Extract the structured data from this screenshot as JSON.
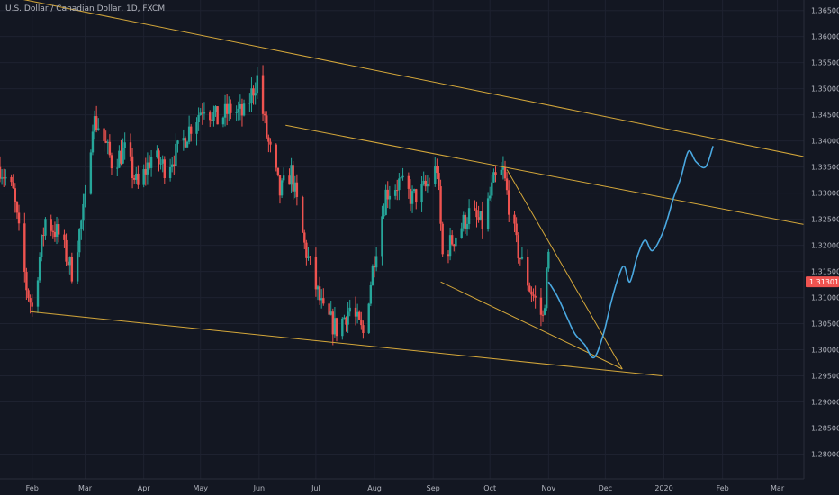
{
  "header": {
    "title": "U.S. Dollar / Canadian Dollar, 1D, FXCM"
  },
  "colors": {
    "background": "#131722",
    "grid": "#1e2230",
    "up": "#26a69a",
    "down": "#ef5350",
    "trendline": "#d4a73a",
    "projection": "#4aa8e0",
    "price_tag": "#ef5350",
    "axis_text": "#b2b5be"
  },
  "chart_data": {
    "type": "candlestick",
    "title": "U.S. Dollar / Canadian Dollar, 1D, FXCM",
    "x_ticks": [
      {
        "label": "Feb",
        "date": "2019-02-01"
      },
      {
        "label": "Mar",
        "date": "2019-03-01"
      },
      {
        "label": "Apr",
        "date": "2019-04-01"
      },
      {
        "label": "May",
        "date": "2019-05-01"
      },
      {
        "label": "Jun",
        "date": "2019-06-01"
      },
      {
        "label": "Jul",
        "date": "2019-07-01"
      },
      {
        "label": "Aug",
        "date": "2019-08-01"
      },
      {
        "label": "Sep",
        "date": "2019-09-01"
      },
      {
        "label": "Oct",
        "date": "2019-10-01"
      },
      {
        "label": "Nov",
        "date": "2019-11-01"
      },
      {
        "label": "Dec",
        "date": "2019-12-01"
      },
      {
        "label": "2020",
        "date": "2020-01-01"
      },
      {
        "label": "Feb",
        "date": "2020-02-01"
      },
      {
        "label": "Mar",
        "date": "2020-03-01"
      }
    ],
    "y_ticks": [
      "1.36500",
      "1.36000",
      "1.35500",
      "1.35000",
      "1.34500",
      "1.34000",
      "1.33500",
      "1.33000",
      "1.32500",
      "1.32000",
      "1.31500",
      "1.31000",
      "1.30500",
      "1.30000",
      "1.29500",
      "1.29000",
      "1.28500",
      "1.28000"
    ],
    "ylim": [
      1.2775,
      1.3665
    ],
    "xlim": [
      "2019-01-15",
      "2020-03-15"
    ],
    "last_price": "1.31301",
    "last_price_value": 1.31301,
    "price_path": [
      [
        "2019-01-15",
        1.335
      ],
      [
        "2019-01-22",
        1.33
      ],
      [
        "2019-01-29",
        1.312
      ],
      [
        "2019-02-01",
        1.308
      ],
      [
        "2019-02-08",
        1.325
      ],
      [
        "2019-02-15",
        1.322
      ],
      [
        "2019-02-22",
        1.315
      ],
      [
        "2019-03-01",
        1.328
      ],
      [
        "2019-03-05",
        1.344
      ],
      [
        "2019-03-08",
        1.343
      ],
      [
        "2019-03-15",
        1.336
      ],
      [
        "2019-03-22",
        1.338
      ],
      [
        "2019-03-29",
        1.331
      ],
      [
        "2019-04-05",
        1.337
      ],
      [
        "2019-04-12",
        1.335
      ],
      [
        "2019-04-19",
        1.338
      ],
      [
        "2019-04-26",
        1.343
      ],
      [
        "2019-05-03",
        1.347
      ],
      [
        "2019-05-10",
        1.344
      ],
      [
        "2019-05-17",
        1.346
      ],
      [
        "2019-05-24",
        1.345
      ],
      [
        "2019-05-31",
        1.352
      ],
      [
        "2019-06-05",
        1.341
      ],
      [
        "2019-06-12",
        1.33
      ],
      [
        "2019-06-18",
        1.334
      ],
      [
        "2019-06-25",
        1.32
      ],
      [
        "2019-07-01",
        1.312
      ],
      [
        "2019-07-05",
        1.307
      ],
      [
        "2019-07-12",
        1.304
      ],
      [
        "2019-07-19",
        1.308
      ],
      [
        "2019-07-26",
        1.303
      ],
      [
        "2019-08-01",
        1.318
      ],
      [
        "2019-08-07",
        1.33
      ],
      [
        "2019-08-14",
        1.332
      ],
      [
        "2019-08-21",
        1.329
      ],
      [
        "2019-08-28",
        1.331
      ],
      [
        "2019-09-03",
        1.335
      ],
      [
        "2019-09-06",
        1.318
      ],
      [
        "2019-09-13",
        1.322
      ],
      [
        "2019-09-20",
        1.326
      ],
      [
        "2019-09-27",
        1.324
      ],
      [
        "2019-10-03",
        1.332
      ],
      [
        "2019-10-08",
        1.334
      ],
      [
        "2019-10-15",
        1.32
      ],
      [
        "2019-10-22",
        1.312
      ],
      [
        "2019-10-29",
        1.306
      ],
      [
        "2019-11-01",
        1.318
      ]
    ],
    "projection": [
      [
        "2019-11-01",
        1.313
      ],
      [
        "2019-11-06",
        1.31
      ],
      [
        "2019-11-11",
        1.306
      ],
      [
        "2019-11-15",
        1.303
      ],
      [
        "2019-11-20",
        1.301
      ],
      [
        "2019-11-25",
        1.2985
      ],
      [
        "2019-11-30",
        1.303
      ],
      [
        "2019-12-04",
        1.309
      ],
      [
        "2019-12-08",
        1.314
      ],
      [
        "2019-12-11",
        1.316
      ],
      [
        "2019-12-14",
        1.313
      ],
      [
        "2019-12-18",
        1.318
      ],
      [
        "2019-12-22",
        1.321
      ],
      [
        "2019-12-26",
        1.319
      ],
      [
        "2020-01-01",
        1.323
      ],
      [
        "2020-01-06",
        1.329
      ],
      [
        "2020-01-10",
        1.333
      ],
      [
        "2020-01-14",
        1.338
      ],
      [
        "2020-01-18",
        1.336
      ],
      [
        "2020-01-23",
        1.335
      ],
      [
        "2020-01-27",
        1.339
      ]
    ],
    "trendlines": [
      {
        "from": [
          "2019-01-15",
          1.368
        ],
        "to": [
          "2020-03-15",
          1.337
        ]
      },
      {
        "from": [
          "2019-06-15",
          1.343
        ],
        "to": [
          "2020-03-15",
          1.324
        ]
      },
      {
        "from": [
          "2019-01-31",
          1.3073
        ],
        "to": [
          "2019-12-31",
          1.295
        ]
      },
      {
        "from": [
          "2019-09-05",
          1.313
        ],
        "to": [
          "2019-12-10",
          1.2963
        ]
      },
      {
        "from": [
          "2019-10-10",
          1.3345
        ],
        "to": [
          "2019-12-10",
          1.2963
        ]
      }
    ]
  }
}
